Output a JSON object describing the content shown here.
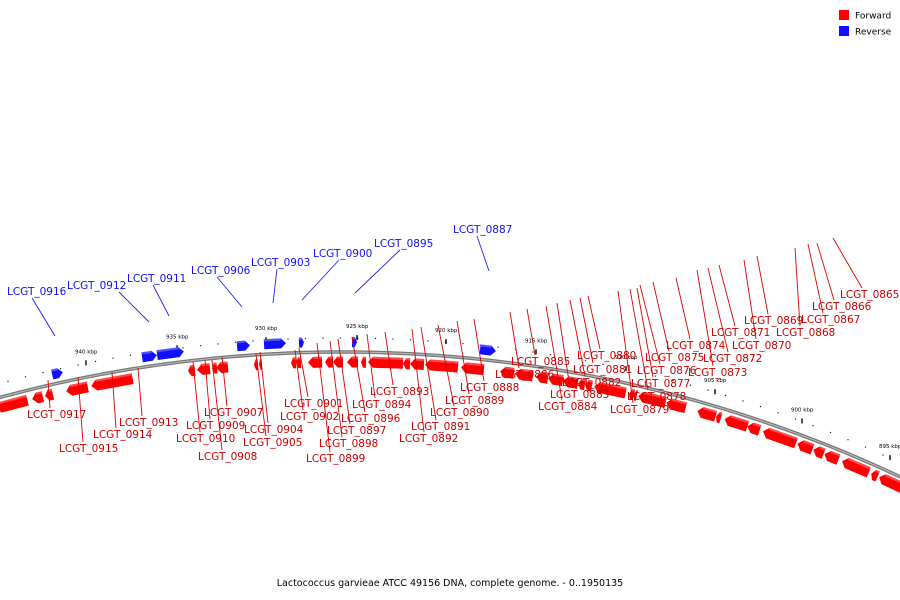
{
  "colors": {
    "forward": "#ff0000",
    "reverse": "#1010ff",
    "backbone": "#777777",
    "line_forward": "#dd0000",
    "line_reverse": "#2020ee"
  },
  "legend": [
    {
      "label": "Forward",
      "color": "#ff0000"
    },
    {
      "label": "Reverse",
      "color": "#1010ff"
    }
  ],
  "caption": "Lactococcus garvieae ATCC 49156 DNA, complete genome. - 0..1950135",
  "scale_labels": [
    "895 kbp",
    "900 kbp",
    "905 kbp",
    "910 kbp",
    "915 kbp",
    "920 kbp",
    "925 kbp",
    "930 kbp",
    "935 kbp",
    "940 kbp"
  ],
  "reverse_labels": [
    "LCGT_0887",
    "LCGT_0895",
    "LCGT_0900",
    "LCGT_0903",
    "LCGT_0906",
    "LCGT_0911",
    "LCGT_0912",
    "LCGT_0916"
  ],
  "forward_labels": [
    "LCGT_0865",
    "LCGT_0866",
    "LCGT_0867",
    "LCGT_0868",
    "LCGT_0869",
    "LCGT_0870",
    "LCGT_0871",
    "LCGT_0872",
    "LCGT_0873",
    "LCGT_0874",
    "LCGT_0875",
    "LCGT_0876",
    "LCGT_0877",
    "LCGT_0878",
    "LCGT_0879",
    "LCGT_0880",
    "LCGT_0881",
    "LCGT_0882",
    "LCGT_0883",
    "LCGT_0884",
    "LCGT_0885",
    "LCGT_0886",
    "LCGT_0888",
    "LCGT_0889",
    "LCGT_0890",
    "LCGT_0891",
    "LCGT_0892",
    "LCGT_0893",
    "LCGT_0894",
    "LCGT_0896",
    "LCGT_0897",
    "LCGT_0898",
    "LCGT_0899",
    "LCGT_0901",
    "LCGT_0902",
    "LCGT_0904",
    "LCGT_0905",
    "LCGT_0907",
    "LCGT_0908",
    "LCGT_0909",
    "LCGT_0910",
    "LCGT_0913",
    "LCGT_0914",
    "LCGT_0915",
    "LCGT_0917"
  ]
}
